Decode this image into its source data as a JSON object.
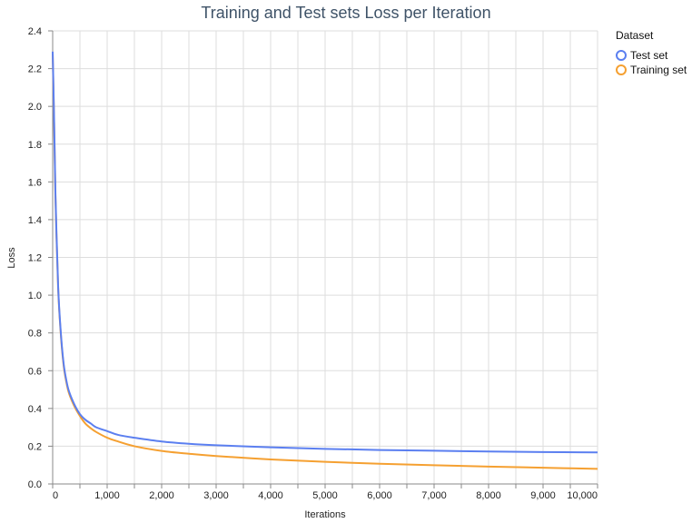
{
  "chart_data": {
    "type": "line",
    "title": "Training and Test sets Loss per Iteration",
    "xlabel": "Iterations",
    "ylabel": "Loss",
    "xlim": [
      0,
      10000
    ],
    "ylim": [
      0,
      2.4
    ],
    "x_ticks": [
      {
        "value": 0,
        "label": "0"
      },
      {
        "value": 1000,
        "label": "1,000"
      },
      {
        "value": 2000,
        "label": "2,000"
      },
      {
        "value": 3000,
        "label": "3,000"
      },
      {
        "value": 4000,
        "label": "4,000"
      },
      {
        "value": 5000,
        "label": "5,000"
      },
      {
        "value": 6000,
        "label": "6,000"
      },
      {
        "value": 7000,
        "label": "7,000"
      },
      {
        "value": 8000,
        "label": "8,000"
      },
      {
        "value": 9000,
        "label": "9,000"
      },
      {
        "value": 10000,
        "label": "10,000"
      }
    ],
    "y_ticks": [
      {
        "value": 0,
        "label": "0.0"
      },
      {
        "value": 0.2,
        "label": "0.2"
      },
      {
        "value": 0.4,
        "label": "0.4"
      },
      {
        "value": 0.6,
        "label": "0.6"
      },
      {
        "value": 0.8,
        "label": "0.8"
      },
      {
        "value": 1.0,
        "label": "1.0"
      },
      {
        "value": 1.2,
        "label": "1.2"
      },
      {
        "value": 1.4,
        "label": "1.4"
      },
      {
        "value": 1.6,
        "label": "1.6"
      },
      {
        "value": 1.8,
        "label": "1.8"
      },
      {
        "value": 2.0,
        "label": "2.0"
      },
      {
        "value": 2.2,
        "label": "2.2"
      },
      {
        "value": 2.4,
        "label": "2.4"
      }
    ],
    "grid": true,
    "legend": {
      "title": "Dataset",
      "position": "top-right"
    },
    "series": [
      {
        "name": "Test set",
        "color": "#5b7ff0",
        "x": [
          0,
          25,
          50,
          100,
          150,
          200,
          250,
          300,
          400,
          500,
          600,
          700,
          800,
          1000,
          1200,
          1500,
          2000,
          2500,
          3000,
          4000,
          5000,
          6000,
          7000,
          8000,
          9000,
          10000
        ],
        "y": [
          2.29,
          1.95,
          1.55,
          1.05,
          0.8,
          0.64,
          0.55,
          0.49,
          0.42,
          0.37,
          0.34,
          0.32,
          0.3,
          0.28,
          0.26,
          0.245,
          0.225,
          0.213,
          0.205,
          0.194,
          0.186,
          0.18,
          0.176,
          0.172,
          0.169,
          0.167
        ]
      },
      {
        "name": "Training set",
        "color": "#f5a031",
        "x": [
          0,
          25,
          50,
          100,
          150,
          200,
          250,
          300,
          400,
          500,
          600,
          700,
          800,
          1000,
          1200,
          1500,
          2000,
          2500,
          3000,
          4000,
          5000,
          6000,
          7000,
          8000,
          9000,
          10000
        ],
        "y": [
          2.28,
          1.93,
          1.53,
          1.04,
          0.79,
          0.63,
          0.54,
          0.48,
          0.41,
          0.36,
          0.32,
          0.295,
          0.275,
          0.245,
          0.225,
          0.2,
          0.175,
          0.16,
          0.148,
          0.13,
          0.117,
          0.107,
          0.099,
          0.092,
          0.086,
          0.08
        ]
      }
    ]
  }
}
